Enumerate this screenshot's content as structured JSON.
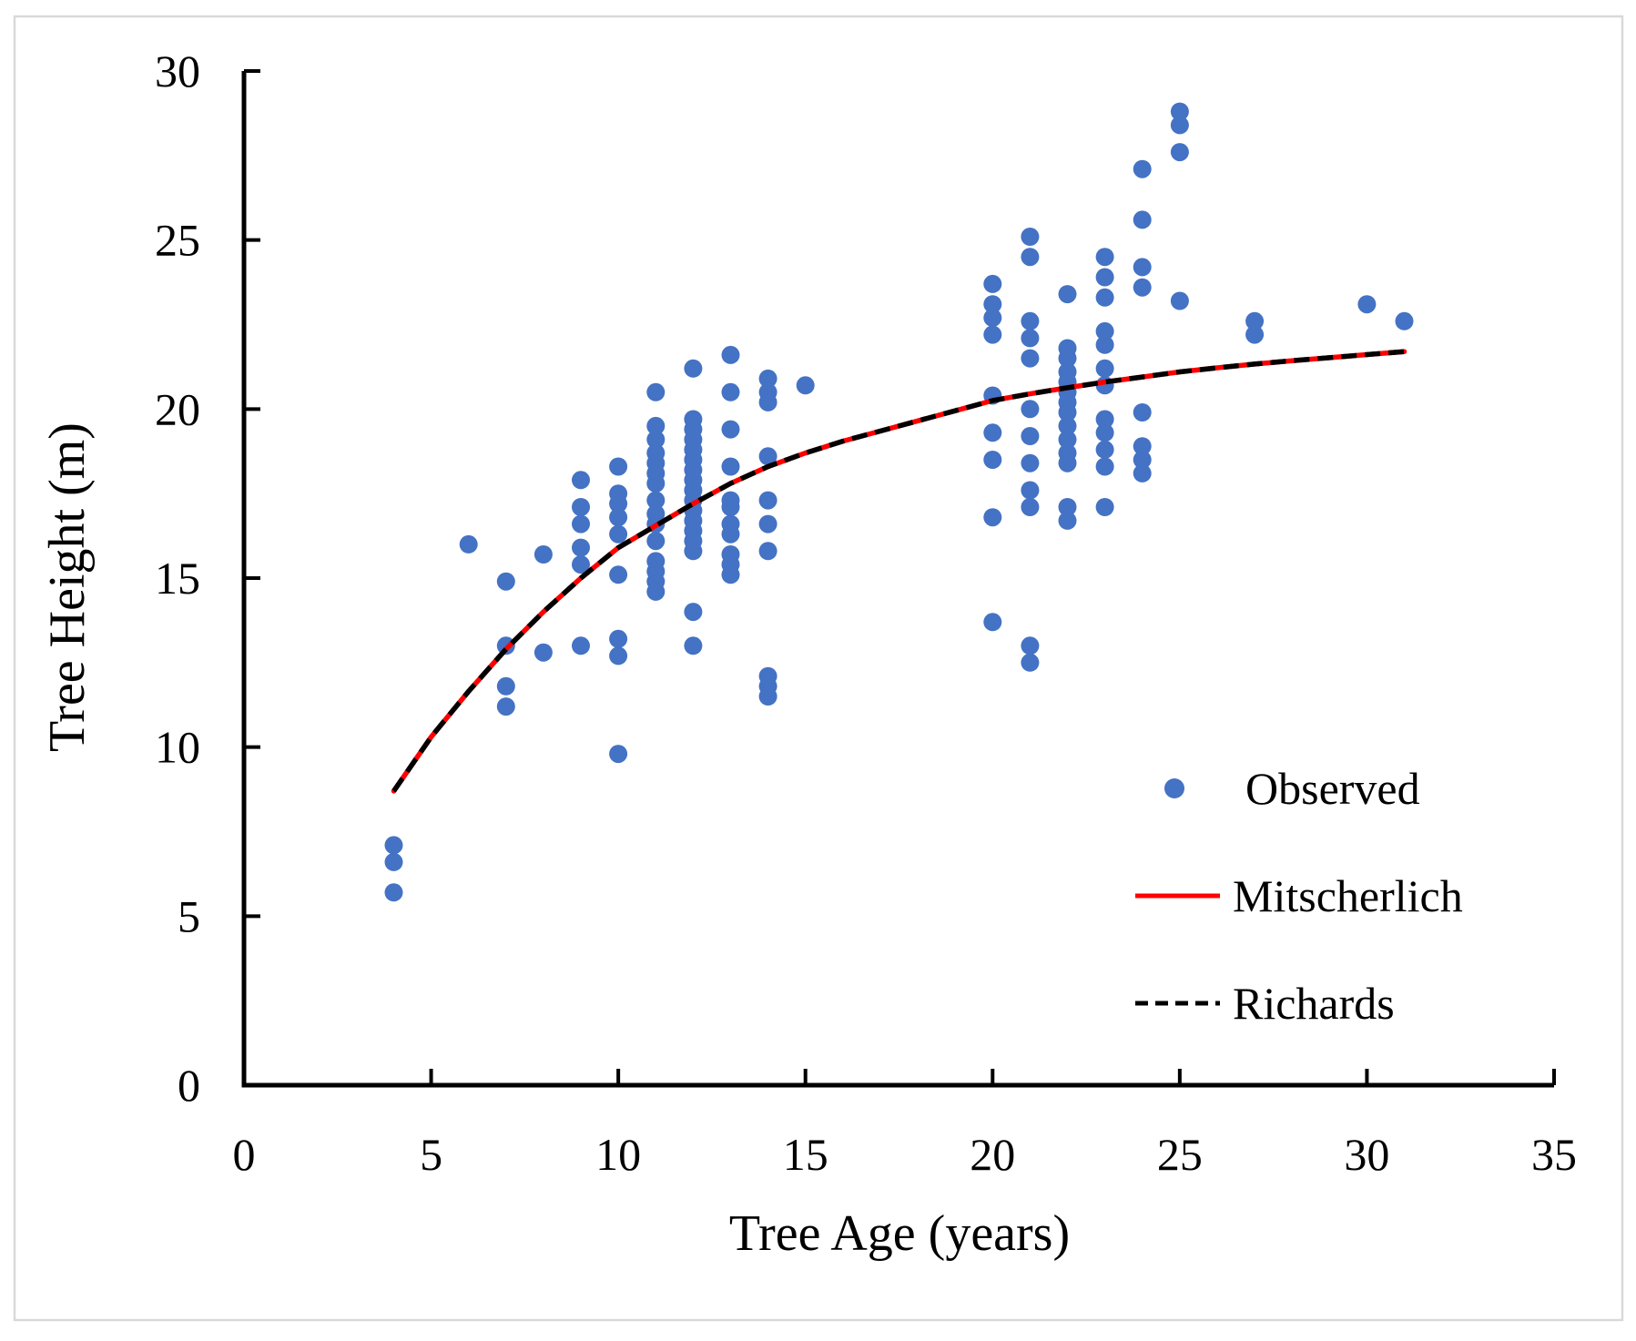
{
  "figure": {
    "background": "#FFFFFF",
    "frame_color": "#D9D9D9",
    "axis_color": "#000000",
    "text_color": "#000000",
    "accent_blue": "#4472C4",
    "accent_red": "#FF0000"
  },
  "chart_data": {
    "type": "scatter",
    "title": "",
    "xlabel": "Tree Age (years)",
    "ylabel": "Tree Height (m)",
    "xlim": [
      0,
      35
    ],
    "ylim": [
      0,
      30
    ],
    "xticks": [
      0,
      5,
      10,
      15,
      20,
      25,
      30,
      35
    ],
    "yticks": [
      0,
      5,
      10,
      15,
      20,
      25,
      30
    ],
    "grid": false,
    "legend_position": "right-middle",
    "series": [
      {
        "name": "Observed",
        "type": "scatter",
        "marker": "circle",
        "color": "#4472C4",
        "points": [
          [
            4,
            7.1
          ],
          [
            4,
            6.6
          ],
          [
            4,
            5.7
          ],
          [
            6,
            16.0
          ],
          [
            7,
            14.9
          ],
          [
            7,
            13.0
          ],
          [
            7,
            11.8
          ],
          [
            7,
            11.2
          ],
          [
            8,
            15.7
          ],
          [
            8,
            12.8
          ],
          [
            9,
            17.9
          ],
          [
            9,
            17.1
          ],
          [
            9,
            16.6
          ],
          [
            9,
            15.9
          ],
          [
            9,
            15.4
          ],
          [
            9,
            13.0
          ],
          [
            10,
            18.3
          ],
          [
            10,
            17.5
          ],
          [
            10,
            17.2
          ],
          [
            10,
            16.8
          ],
          [
            10,
            16.3
          ],
          [
            10,
            15.1
          ],
          [
            10,
            13.2
          ],
          [
            10,
            12.7
          ],
          [
            10,
            9.8
          ],
          [
            11,
            20.5
          ],
          [
            11,
            19.5
          ],
          [
            11,
            19.1
          ],
          [
            11,
            18.7
          ],
          [
            11,
            18.4
          ],
          [
            11,
            18.1
          ],
          [
            11,
            17.8
          ],
          [
            11,
            17.3
          ],
          [
            11,
            16.9
          ],
          [
            11,
            16.6
          ],
          [
            11,
            16.1
          ],
          [
            11,
            15.5
          ],
          [
            11,
            15.2
          ],
          [
            11,
            14.9
          ],
          [
            11,
            14.6
          ],
          [
            12,
            21.2
          ],
          [
            12,
            19.7
          ],
          [
            12,
            19.4
          ],
          [
            12,
            19.1
          ],
          [
            12,
            18.8
          ],
          [
            12,
            18.5
          ],
          [
            12,
            18.2
          ],
          [
            12,
            17.9
          ],
          [
            12,
            17.6
          ],
          [
            12,
            17.3
          ],
          [
            12,
            17.0
          ],
          [
            12,
            16.7
          ],
          [
            12,
            16.4
          ],
          [
            12,
            16.1
          ],
          [
            12,
            15.8
          ],
          [
            12,
            14.0
          ],
          [
            12,
            13.0
          ],
          [
            13,
            21.6
          ],
          [
            13,
            20.5
          ],
          [
            13,
            19.4
          ],
          [
            13,
            18.3
          ],
          [
            13,
            17.3
          ],
          [
            13,
            17.1
          ],
          [
            13,
            16.6
          ],
          [
            13,
            16.3
          ],
          [
            13,
            15.7
          ],
          [
            13,
            15.4
          ],
          [
            13,
            15.1
          ],
          [
            14,
            20.9
          ],
          [
            14,
            20.5
          ],
          [
            14,
            20.2
          ],
          [
            14,
            18.6
          ],
          [
            14,
            17.3
          ],
          [
            14,
            16.6
          ],
          [
            14,
            15.8
          ],
          [
            14,
            12.1
          ],
          [
            14,
            11.8
          ],
          [
            14,
            11.5
          ],
          [
            15,
            20.7
          ],
          [
            20,
            23.7
          ],
          [
            20,
            23.1
          ],
          [
            20,
            22.7
          ],
          [
            20,
            22.2
          ],
          [
            20,
            20.4
          ],
          [
            20,
            19.3
          ],
          [
            20,
            18.5
          ],
          [
            20,
            16.8
          ],
          [
            20,
            13.7
          ],
          [
            21,
            25.1
          ],
          [
            21,
            24.5
          ],
          [
            21,
            22.6
          ],
          [
            21,
            22.1
          ],
          [
            21,
            21.5
          ],
          [
            21,
            20.0
          ],
          [
            21,
            19.2
          ],
          [
            21,
            18.4
          ],
          [
            21,
            17.6
          ],
          [
            21,
            17.1
          ],
          [
            21,
            13.0
          ],
          [
            21,
            12.5
          ],
          [
            22,
            23.4
          ],
          [
            22,
            21.8
          ],
          [
            22,
            21.5
          ],
          [
            22,
            21.1
          ],
          [
            22,
            20.8
          ],
          [
            22,
            20.5
          ],
          [
            22,
            20.2
          ],
          [
            22,
            19.9
          ],
          [
            22,
            19.5
          ],
          [
            22,
            19.1
          ],
          [
            22,
            18.7
          ],
          [
            22,
            18.4
          ],
          [
            22,
            17.1
          ],
          [
            22,
            16.7
          ],
          [
            23,
            24.5
          ],
          [
            23,
            23.9
          ],
          [
            23,
            23.3
          ],
          [
            23,
            22.3
          ],
          [
            23,
            21.9
          ],
          [
            23,
            21.2
          ],
          [
            23,
            20.7
          ],
          [
            23,
            19.7
          ],
          [
            23,
            19.3
          ],
          [
            23,
            18.8
          ],
          [
            23,
            18.3
          ],
          [
            23,
            17.1
          ],
          [
            24,
            27.1
          ],
          [
            24,
            25.6
          ],
          [
            24,
            24.2
          ],
          [
            24,
            23.6
          ],
          [
            24,
            19.9
          ],
          [
            24,
            18.9
          ],
          [
            24,
            18.5
          ],
          [
            24,
            18.1
          ],
          [
            25,
            28.8
          ],
          [
            25,
            28.4
          ],
          [
            25,
            27.6
          ],
          [
            25,
            23.2
          ],
          [
            27,
            22.6
          ],
          [
            27,
            22.2
          ],
          [
            30,
            23.1
          ],
          [
            31,
            22.6
          ]
        ]
      },
      {
        "name": "Mitscherlich",
        "type": "line",
        "style": "solid",
        "color": "#FF0000",
        "x": [
          4,
          5,
          6,
          7,
          8,
          9,
          10,
          11,
          12,
          13,
          14,
          15,
          16,
          17,
          18,
          19,
          20,
          21,
          22,
          23,
          24,
          25,
          26,
          27,
          28,
          29,
          30,
          31
        ],
        "y": [
          8.7,
          10.3,
          11.65,
          12.9,
          14.0,
          15.0,
          15.9,
          16.55,
          17.2,
          17.8,
          18.3,
          18.7,
          19.05,
          19.35,
          19.65,
          19.95,
          20.25,
          20.45,
          20.63,
          20.8,
          20.95,
          21.1,
          21.22,
          21.33,
          21.43,
          21.52,
          21.61,
          21.7
        ]
      },
      {
        "name": "Richards",
        "type": "line",
        "style": "dashed",
        "color": "#000000",
        "x": [
          4,
          5,
          6,
          7,
          8,
          9,
          10,
          11,
          12,
          13,
          14,
          15,
          16,
          17,
          18,
          19,
          20,
          21,
          22,
          23,
          24,
          25,
          26,
          27,
          28,
          29,
          30,
          31
        ],
        "y": [
          8.7,
          10.3,
          11.65,
          12.9,
          14.0,
          15.0,
          15.9,
          16.55,
          17.2,
          17.8,
          18.3,
          18.7,
          19.05,
          19.35,
          19.65,
          19.95,
          20.25,
          20.45,
          20.63,
          20.8,
          20.95,
          21.1,
          21.22,
          21.33,
          21.43,
          21.52,
          21.61,
          21.7
        ]
      }
    ]
  },
  "legend": {
    "items": [
      {
        "label": "Observed",
        "marker": "dot",
        "color": "#4472C4"
      },
      {
        "label": "Mitscherlich",
        "marker": "solid-line",
        "color": "#FF0000"
      },
      {
        "label": "Richards",
        "marker": "dashed-line",
        "color": "#000000"
      }
    ]
  }
}
